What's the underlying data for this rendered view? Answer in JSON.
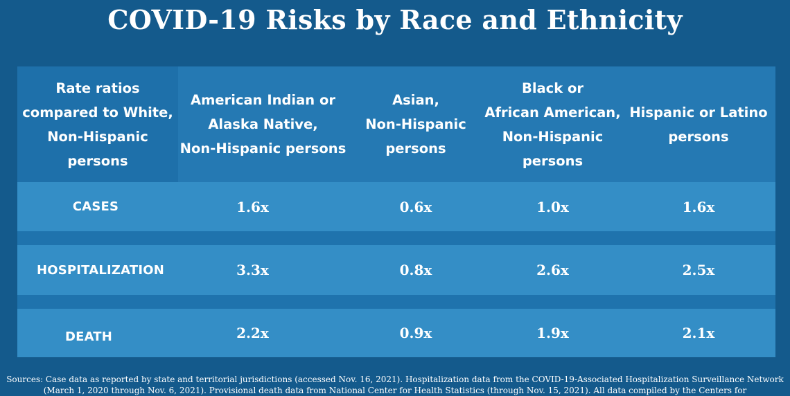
{
  "title": "COVID-19 Risks by Race and Ethnicity",
  "table": {
    "headers": [
      "Rate ratios\ncompared to White,\nNon-Hispanic\npersons",
      "American Indian or\nAlaska Native,\nNon-Hispanic persons",
      "Asian,\nNon-Hispanic\npersons",
      "Black or\nAfrican American,\nNon-Hispanic\npersons",
      "Hispanic or Latino\npersons"
    ],
    "rows": [
      {
        "label": "CASES",
        "values": [
          "1.6x",
          "0.6x",
          "1.0x",
          "1.6x"
        ]
      },
      {
        "label": "HOSPITALIZATION",
        "values": [
          "3.3x",
          "0.8x",
          "2.6x",
          "2.5x"
        ]
      },
      {
        "label": "DEATH",
        "values": [
          "2.2x",
          "0.9x",
          "1.9x",
          "2.1x"
        ]
      }
    ]
  },
  "sources": "Sources: Case data as reported by state and territorial jurisdictions (accessed Nov. 16, 2021). Hospitalization data from the COVID-19-Associated Hospitalization Surveillance Network (March 1, 2020 through Nov. 6, 2021). Provisional death data from National Center for Health Statistics (through Nov. 15, 2021). All data compiled by the Centers for",
  "colors": {
    "background": "#145a8c",
    "table_header": "#2579b3",
    "table_row": "#348ec6",
    "text": "#ffffff"
  }
}
